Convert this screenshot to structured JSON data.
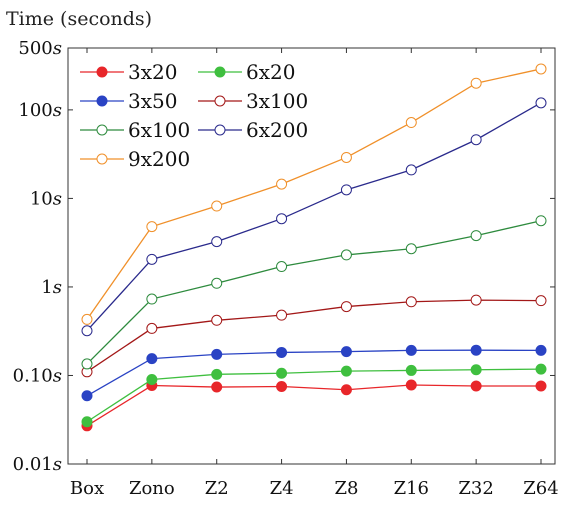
{
  "chart_data": {
    "type": "line",
    "title": "Time (seconds)",
    "xlabel": "",
    "ylabel": "",
    "yscale": "log",
    "ylim": [
      0.01,
      500
    ],
    "categories": [
      "Box",
      "Zono",
      "Z2",
      "Z4",
      "Z8",
      "Z16",
      "Z32",
      "Z64"
    ],
    "y_ticks": [
      {
        "value": 0.01,
        "label": "0.01s"
      },
      {
        "value": 0.1,
        "label": "0.10s"
      },
      {
        "value": 1,
        "label": "1s"
      },
      {
        "value": 10,
        "label": "10s"
      },
      {
        "value": 100,
        "label": "100s"
      },
      {
        "value": 500,
        "label": "500s"
      }
    ],
    "grid": false,
    "legend_position": "top-left",
    "series": [
      {
        "name": "3x20",
        "color": "#e8262a",
        "marker": "filled",
        "values": [
          0.027,
          0.077,
          0.074,
          0.075,
          0.069,
          0.078,
          0.076,
          0.076
        ]
      },
      {
        "name": "6x20",
        "color": "#3fbf3f",
        "marker": "filled",
        "values": [
          0.03,
          0.09,
          0.103,
          0.106,
          0.112,
          0.114,
          0.116,
          0.118
        ]
      },
      {
        "name": "3x50",
        "color": "#2a43c4",
        "marker": "filled",
        "values": [
          0.059,
          0.155,
          0.173,
          0.182,
          0.186,
          0.192,
          0.193,
          0.192
        ]
      },
      {
        "name": "3x100",
        "color": "#a31818",
        "marker": "hollow",
        "values": [
          0.11,
          0.34,
          0.42,
          0.48,
          0.6,
          0.68,
          0.71,
          0.7
        ]
      },
      {
        "name": "6x100",
        "color": "#2e8b3e",
        "marker": "hollow",
        "values": [
          0.135,
          0.73,
          1.1,
          1.7,
          2.3,
          2.7,
          3.8,
          5.6
        ]
      },
      {
        "name": "6x200",
        "color": "#2a2a8c",
        "marker": "hollow",
        "values": [
          0.32,
          2.05,
          3.25,
          5.9,
          12.5,
          21.0,
          46.0,
          120.0
        ]
      },
      {
        "name": "9x200",
        "color": "#f0902a",
        "marker": "hollow",
        "values": [
          0.43,
          4.8,
          8.2,
          14.5,
          29.0,
          72.0,
          200.0,
          290.0
        ]
      }
    ]
  }
}
